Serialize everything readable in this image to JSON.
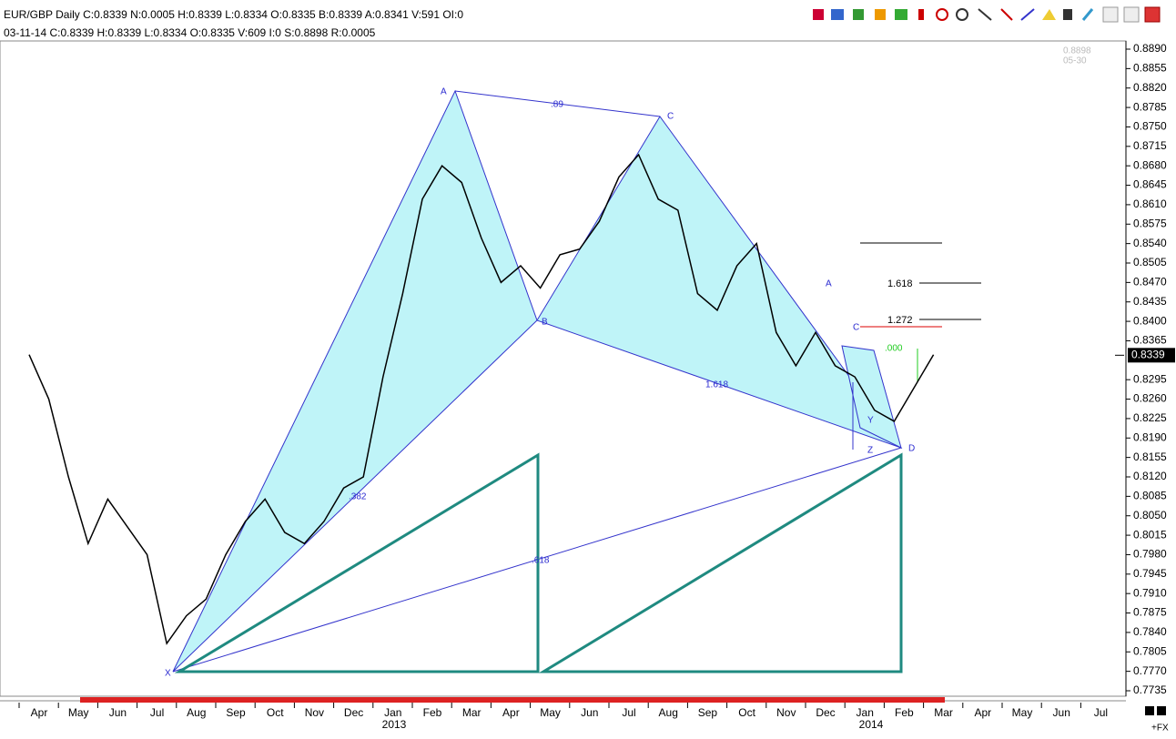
{
  "chart_data": {
    "type": "line",
    "title": "EUR/GBP  Daily  C:0.8339  N:0.0005  H:0.8339  L:0.8334  O:0.8335  B:0.8339  A:0.8341  V:591  OI:0",
    "subtitle": "03-11-14  C:0.8339  H:0.8339  L:0.8334  O:0.8335  V:609  I:0  S:0.8898  R:0.0005",
    "categories": [
      "Apr",
      null,
      "May",
      null,
      "Jun",
      null,
      "Jul",
      null,
      "Aug",
      null,
      "Sep",
      null,
      "Oct",
      null,
      "Nov",
      null,
      "Dec",
      null,
      "Jan",
      null,
      "Feb",
      null,
      "Mar",
      null,
      "Apr",
      null,
      "May",
      null,
      "Jun",
      null,
      "Jul",
      null,
      "Aug",
      null,
      "Sep",
      null,
      "Oct",
      null,
      "Nov",
      null,
      "Dec",
      null,
      "Jan",
      null,
      "Feb",
      null,
      "Mar",
      null,
      "Apr",
      null,
      "May",
      null,
      "Jun",
      null,
      "Jul",
      null
    ],
    "years": [
      "2013",
      "2014"
    ],
    "series": [
      {
        "name": "EUR/GBP",
        "color": "#000000",
        "values": [
          0.834,
          0.826,
          0.812,
          0.8,
          0.808,
          0.803,
          0.798,
          0.782,
          0.787,
          0.79,
          0.798,
          0.804,
          0.808,
          0.802,
          0.8,
          0.804,
          0.81,
          0.812,
          0.83,
          0.845,
          0.862,
          0.868,
          0.865,
          0.855,
          0.847,
          0.85,
          0.846,
          0.852,
          0.853,
          0.858,
          0.866,
          0.87,
          0.862,
          0.86,
          0.845,
          0.842,
          0.85,
          0.854,
          0.838,
          0.832,
          0.838,
          0.832,
          0.83,
          0.824,
          0.822,
          0.828,
          0.834,
          null,
          null,
          null,
          null,
          null,
          null,
          null,
          null,
          null
        ]
      }
    ],
    "last_value": 0.8339,
    "ylim": [
      0.7735,
      0.889
    ],
    "yticks": [
      {
        "value": 0.889,
        "label": "0.8890"
      },
      0.8855,
      {
        "value": 0.882,
        "label": "0.8820"
      },
      0.8785,
      {
        "value": 0.875,
        "label": "0.8750"
      },
      0.8715,
      {
        "value": 0.868,
        "label": "0.8680"
      },
      0.8645,
      {
        "value": 0.861,
        "label": "0.8610"
      },
      0.8575,
      {
        "value": 0.854,
        "label": "0.8540"
      },
      0.8505,
      {
        "value": 0.847,
        "label": "0.8470"
      },
      0.8435,
      {
        "value": 0.84,
        "label": "0.8400"
      },
      0.8365,
      0.8295,
      {
        "value": 0.826,
        "label": "0.8260"
      },
      0.8225,
      {
        "value": 0.819,
        "label": "0.8190"
      },
      0.8155,
      {
        "value": 0.812,
        "label": "0.8120"
      },
      0.8085,
      {
        "value": 0.805,
        "label": "0.8050"
      },
      0.8015,
      {
        "value": 0.798,
        "label": "0.7980"
      },
      0.7945,
      {
        "value": 0.791,
        "label": "0.7910"
      },
      0.7875,
      {
        "value": 0.784,
        "label": "0.7840"
      },
      0.7805,
      {
        "value": 0.777,
        "label": "0.7770"
      },
      0.7735
    ],
    "annotations": [
      "A",
      ".89",
      "C",
      "B",
      "1.618",
      ".382",
      ".618",
      "X",
      "D",
      "A",
      "C",
      "1.618",
      "1.272",
      ".000",
      "Z",
      "Y"
    ],
    "corner_labels": [
      "0.8898",
      "05-30"
    ],
    "footer": "+FX"
  }
}
